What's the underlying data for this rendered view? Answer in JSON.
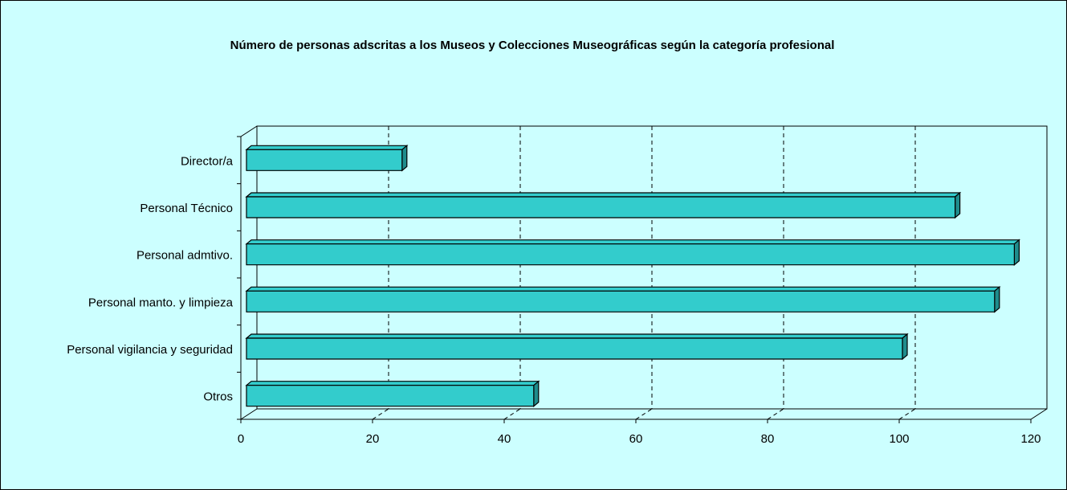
{
  "chart_data": {
    "type": "bar3d_horizontal",
    "title": "Número de personas adscritas a los Museos y Colecciones Museográficas según la categoría profesional",
    "categories": [
      "Director/a",
      "Personal Técnico",
      "Personal admtivo.",
      "Personal manto. y limpieza",
      "Personal vigilancia y seguridad",
      "Otros"
    ],
    "values": [
      24,
      108,
      117,
      114,
      100,
      44
    ],
    "color": "#33cccc",
    "xlim": [
      0,
      120
    ],
    "xticks": [
      0,
      20,
      40,
      60,
      80,
      100,
      120
    ],
    "grid": true
  }
}
